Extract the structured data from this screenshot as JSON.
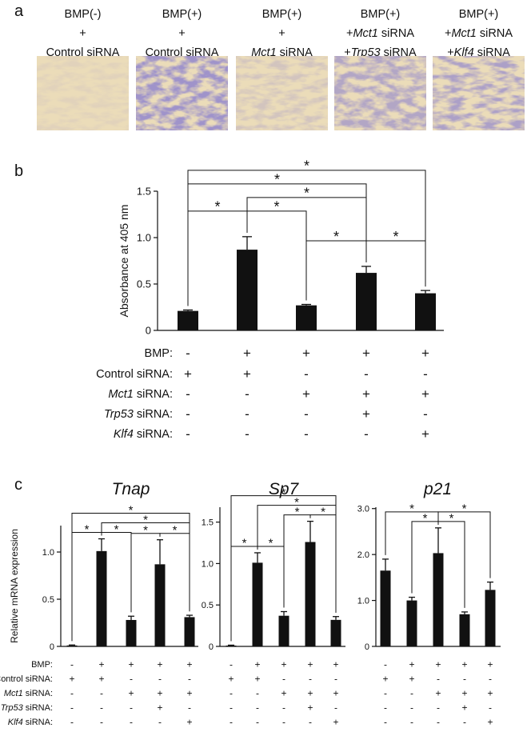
{
  "panel_a": {
    "label": "a",
    "images": [
      {
        "caption": [
          [
            {
              "text": "BMP(-)"
            }
          ],
          [
            {
              "text": "+"
            }
          ],
          [
            {
              "text": "Control siRNA"
            }
          ]
        ]
      },
      {
        "caption": [
          [
            {
              "text": "BMP(+)"
            }
          ],
          [
            {
              "text": "+"
            }
          ],
          [
            {
              "text": "Control siRNA"
            }
          ]
        ]
      },
      {
        "caption": [
          [
            {
              "text": "BMP(+)"
            }
          ],
          [
            {
              "text": "+"
            }
          ],
          [
            {
              "text": "Mct1",
              "italic": true
            },
            {
              "text": " siRNA"
            }
          ]
        ]
      },
      {
        "caption": [
          [
            {
              "text": "BMP(+)"
            }
          ],
          [
            {
              "text": "+"
            },
            {
              "text": "Mct1",
              "italic": true
            },
            {
              "text": " siRNA"
            }
          ],
          [
            {
              "text": "+"
            },
            {
              "text": "Trp53",
              "italic": true
            },
            {
              "text": " siRNA"
            }
          ]
        ]
      },
      {
        "caption": [
          [
            {
              "text": "BMP(+)"
            }
          ],
          [
            {
              "text": "+"
            },
            {
              "text": "Mct1",
              "italic": true
            },
            {
              "text": " siRNA"
            }
          ],
          [
            {
              "text": "+"
            },
            {
              "text": "Klf4",
              "italic": true
            },
            {
              "text": " siRNA"
            }
          ]
        ]
      }
    ]
  },
  "panel_b_label": "b",
  "panel_c_label": "c",
  "chart_data": [
    {
      "type": "bar",
      "y_label": "Absorbance at 405 nm",
      "color": "#111111",
      "values": [
        0.21,
        0.87,
        0.27,
        0.62,
        0.4
      ],
      "errors": [
        0.01,
        0.14,
        0.01,
        0.07,
        0.03
      ],
      "ylim": [
        0,
        1.5
      ],
      "yticks": [
        0,
        0.5,
        {
          "value": 1,
          "label": "1.0"
        },
        1.5
      ],
      "brackets": [
        {
          "from": 2,
          "to": 3,
          "label": "*"
        },
        {
          "from": 3,
          "to": 4,
          "label": "*"
        },
        {
          "from": 0,
          "to": 1,
          "label": "*"
        },
        {
          "from": 1,
          "to": 2,
          "label": "*"
        },
        {
          "from": 1,
          "to": 3,
          "label": "*"
        },
        {
          "from": 0,
          "to": 3,
          "label": "*"
        },
        {
          "from": 0,
          "to": 4,
          "label": "*"
        }
      ],
      "condition_labels": [
        [
          {
            "text": "BMP:"
          }
        ],
        [
          {
            "text": "Control siRNA:"
          }
        ],
        [
          {
            "text": "Mct1",
            "italic": true
          },
          {
            "text": " siRNA:"
          }
        ],
        [
          {
            "text": "Trp53",
            "italic": true
          },
          {
            "text": " siRNA:"
          }
        ],
        [
          {
            "text": "Klf4",
            "italic": true
          },
          {
            "text": " siRNA:"
          }
        ]
      ],
      "conditions": [
        [
          "-",
          "+",
          "+",
          "+",
          "+"
        ],
        [
          "+",
          "+",
          "-",
          "-",
          "-"
        ],
        [
          "-",
          "-",
          "+",
          "+",
          "+"
        ],
        [
          "-",
          "-",
          "-",
          "+",
          "-"
        ],
        [
          "-",
          "-",
          "-",
          "-",
          "+"
        ]
      ]
    },
    {
      "type": "bar",
      "title": "Tnap",
      "y_label": "Relative mRNA expression",
      "color": "#111111",
      "values": [
        0.01,
        1.01,
        0.28,
        0.87,
        0.31
      ],
      "errors": [
        0.005,
        0.13,
        0.04,
        0.26,
        0.02
      ],
      "ylim": [
        0,
        1.28
      ],
      "yticks": [
        0,
        0.5,
        {
          "value": 1,
          "label": "1.0"
        }
      ],
      "brackets": [
        {
          "from": 0,
          "to": 1,
          "label": "*"
        },
        {
          "from": 1,
          "to": 2,
          "label": "*"
        },
        {
          "from": 2,
          "to": 3,
          "label": "*"
        },
        {
          "from": 3,
          "to": 4,
          "label": "*"
        },
        {
          "from": 1,
          "to": 4,
          "label": "*"
        },
        {
          "from": 0,
          "to": 4,
          "label": "*"
        }
      ],
      "condition_labels": [
        [
          {
            "text": "BMP:"
          }
        ],
        [
          {
            "text": "Control siRNA:"
          }
        ],
        [
          {
            "text": "Mct1",
            "italic": true
          },
          {
            "text": " siRNA:"
          }
        ],
        [
          {
            "text": "Trp53",
            "italic": true
          },
          {
            "text": " siRNA:"
          }
        ],
        [
          {
            "text": "Klf4",
            "italic": true
          },
          {
            "text": " siRNA:"
          }
        ]
      ],
      "conditions": [
        [
          "-",
          "+",
          "+",
          "+",
          "+"
        ],
        [
          "+",
          "+",
          "-",
          "-",
          "-"
        ],
        [
          "-",
          "-",
          "+",
          "+",
          "+"
        ],
        [
          "-",
          "-",
          "-",
          "+",
          "-"
        ],
        [
          "-",
          "-",
          "-",
          "-",
          "+"
        ]
      ]
    },
    {
      "type": "bar",
      "title": "Sp7",
      "color": "#111111",
      "values": [
        0.01,
        1.01,
        0.37,
        1.26,
        0.32
      ],
      "errors": [
        0.005,
        0.12,
        0.05,
        0.25,
        0.04
      ],
      "ylim": [
        0,
        1.68
      ],
      "yticks": [
        0,
        0.5,
        {
          "value": 1,
          "label": "1.0"
        },
        1.5
      ],
      "brackets": [
        {
          "from": 0,
          "to": 1,
          "label": "*"
        },
        {
          "from": 1,
          "to": 2,
          "label": "*"
        },
        {
          "from": 2,
          "to": 3,
          "label": "*"
        },
        {
          "from": 3,
          "to": 4,
          "label": "*"
        },
        {
          "from": 1,
          "to": 4,
          "label": "*"
        },
        {
          "from": 0,
          "to": 4,
          "label": "*"
        }
      ],
      "conditions": [
        [
          "-",
          "+",
          "+",
          "+",
          "+"
        ],
        [
          "+",
          "+",
          "-",
          "-",
          "-"
        ],
        [
          "-",
          "-",
          "+",
          "+",
          "+"
        ],
        [
          "-",
          "-",
          "-",
          "+",
          "-"
        ],
        [
          "-",
          "-",
          "-",
          "-",
          "+"
        ]
      ]
    },
    {
      "type": "bar",
      "title": "p21",
      "color": "#111111",
      "values": [
        1.65,
        1.0,
        2.03,
        0.7,
        1.23
      ],
      "errors": [
        0.25,
        0.07,
        0.55,
        0.05,
        0.17
      ],
      "ylim": [
        0,
        3.03
      ],
      "yticks": [
        0,
        {
          "value": 1,
          "label": "1.0"
        },
        {
          "value": 2,
          "label": "2.0"
        },
        {
          "value": 3,
          "label": "3.0"
        }
      ],
      "brackets": [
        {
          "from": 1,
          "to": 2,
          "label": "*"
        },
        {
          "from": 2,
          "to": 3,
          "label": "*"
        },
        {
          "from": 2,
          "to": 4,
          "label": "*"
        },
        {
          "from": 0,
          "to": 2,
          "label": "*"
        }
      ],
      "conditions": [
        [
          "-",
          "+",
          "+",
          "+",
          "+"
        ],
        [
          "+",
          "+",
          "-",
          "-",
          "-"
        ],
        [
          "-",
          "-",
          "+",
          "+",
          "+"
        ],
        [
          "-",
          "-",
          "-",
          "+",
          "-"
        ],
        [
          "-",
          "-",
          "-",
          "-",
          "+"
        ]
      ]
    }
  ]
}
